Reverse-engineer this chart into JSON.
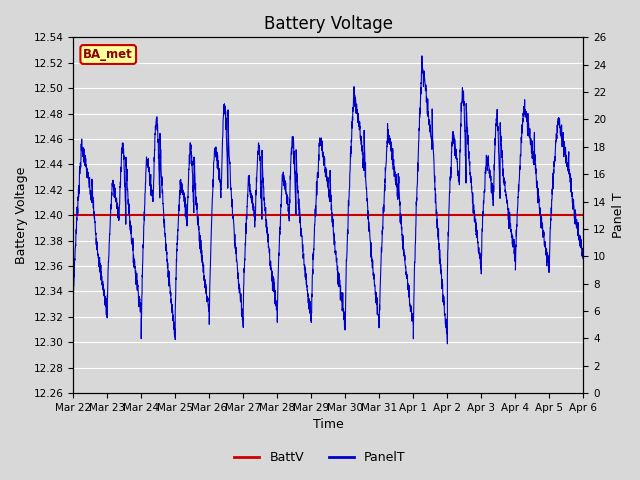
{
  "title": "Battery Voltage",
  "xlabel": "Time",
  "ylabel_left": "Battery Voltage",
  "ylabel_right": "Panel T",
  "ylim_left": [
    12.26,
    12.54
  ],
  "ylim_right": [
    0,
    26
  ],
  "yticks_left": [
    12.26,
    12.28,
    12.3,
    12.32,
    12.34,
    12.36,
    12.38,
    12.4,
    12.42,
    12.44,
    12.46,
    12.48,
    12.5,
    12.52,
    12.54
  ],
  "yticks_right": [
    0,
    2,
    4,
    6,
    8,
    10,
    12,
    14,
    16,
    18,
    20,
    22,
    24,
    26
  ],
  "battv_value": 12.4,
  "battv_color": "#cc0000",
  "panelt_color": "#0000cc",
  "background_color": "#d8d8d8",
  "plot_bg_color": "#d8d8d8",
  "grid_color": "#ffffff",
  "label_box_text": "BA_met",
  "label_box_bg": "#ffff99",
  "label_box_border": "#cc0000",
  "legend_battv": "BattV",
  "legend_panelt": "PanelT",
  "x_labels": [
    "Mar 22",
    "Mar 23",
    "Mar 24",
    "Mar 25",
    "Mar 26",
    "Mar 27",
    "Mar 28",
    "Mar 29",
    "Mar 30",
    "Mar 31",
    "Apr 1",
    "Apr 2",
    "Apr 3",
    "Apr 4",
    "Apr 5",
    "Apr 6"
  ],
  "title_fontsize": 12,
  "axis_label_fontsize": 9,
  "tick_fontsize": 7.5
}
